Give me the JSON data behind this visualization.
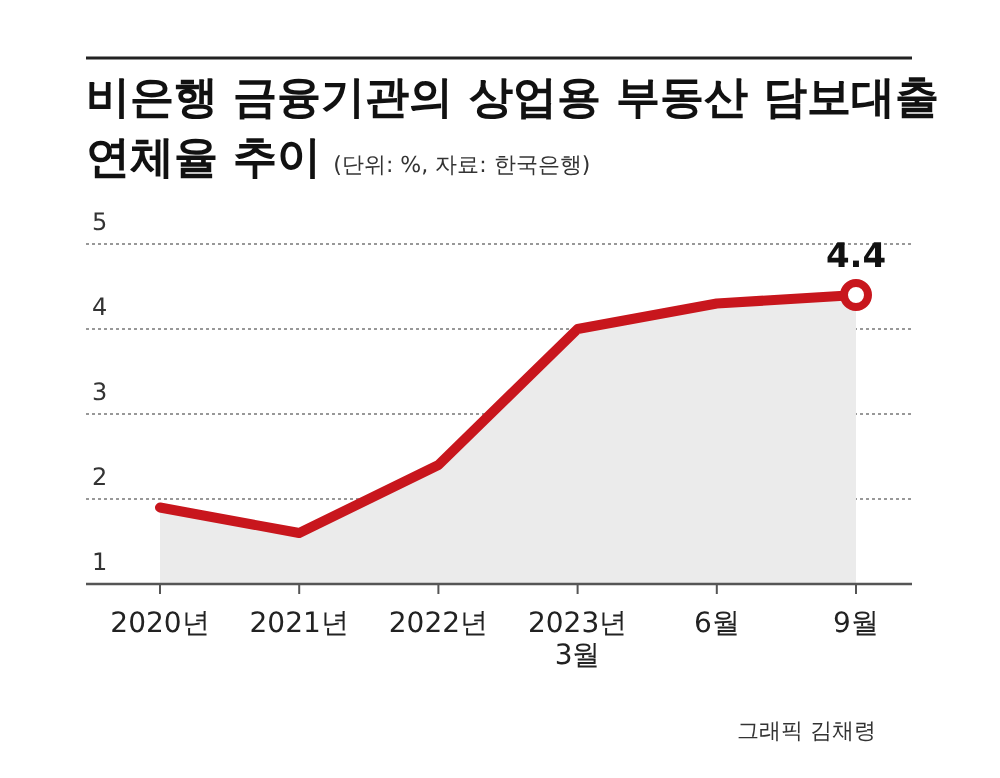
{
  "chart_data": {
    "type": "area",
    "title": "비은행 금융기관의 상업용 부동산 담보대출\n연체율 추이",
    "subtitle": "(단위: %, 자료: 한국은행)",
    "categories": [
      "2020년",
      "2021년",
      "2022년",
      "2023년\n3월",
      "6월",
      "9월"
    ],
    "series": [
      {
        "color": "#c8161d",
        "values": [
          1.9,
          1.6,
          2.4,
          4.0,
          4.3,
          4.4
        ]
      }
    ],
    "ylim": [
      1,
      5
    ],
    "yticks": [
      1,
      2,
      3,
      4,
      5
    ],
    "grid": "y",
    "annotations": [
      {
        "text": "4.4",
        "x": "9월",
        "y": 4.4
      },
      "그래픽 김채령"
    ]
  }
}
